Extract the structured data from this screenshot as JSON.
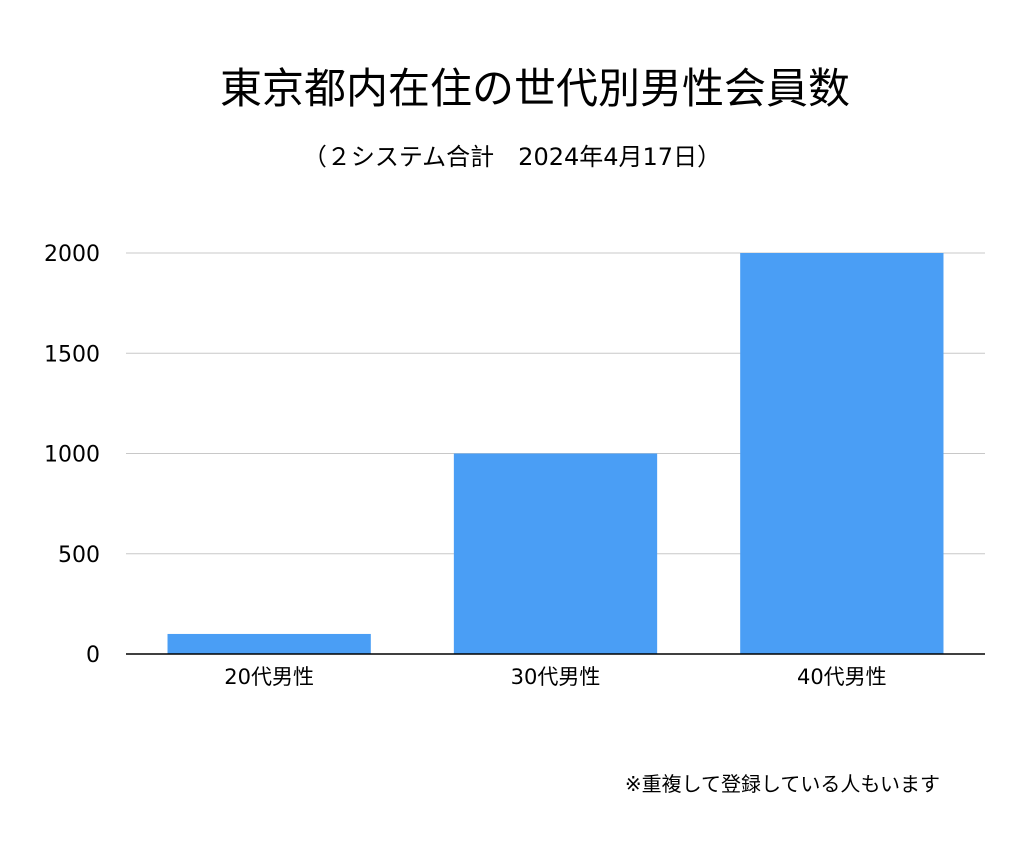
{
  "chart_data": {
    "type": "bar",
    "title": "東京都内在住の世代別男性会員数",
    "subtitle": "（２システム合計　2024年4月17日）",
    "categories": [
      "20代男性",
      "30代男性",
      "40代男性"
    ],
    "values": [
      100,
      1000,
      2000
    ],
    "ylim": [
      0,
      2000
    ],
    "yticks": [
      "0",
      "500",
      "1000",
      "1500",
      "2000"
    ],
    "grid": true,
    "bar_color": "#4a9ef5",
    "footnote": "※重複して登録している人もいます"
  }
}
